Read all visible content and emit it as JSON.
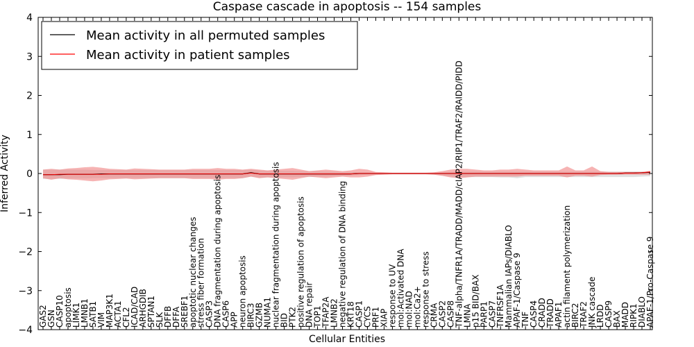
{
  "chart_data": {
    "type": "line",
    "title": "Caspase cascade in apoptosis -- 154 samples",
    "xlabel": "Cellular Entities",
    "ylabel": "Inferred Activity",
    "ylim": [
      -4,
      4
    ],
    "yticks": [
      -4,
      -3,
      -2,
      -1,
      0,
      1,
      2,
      3,
      4
    ],
    "ytick_labels": [
      "−4",
      "−3",
      "−2",
      "−1",
      "0",
      "1",
      "2",
      "3",
      "4"
    ],
    "legend_position": "top-left",
    "categories": [
      "GAS2",
      "GSN",
      "CASP10",
      "apoptosis",
      "LIMK1",
      "LMNB1",
      "SATB1",
      "VIM",
      "MAP3K1",
      "ACTA1",
      "CFL2",
      "ICAD/CAD",
      "ARHGDIB",
      "SPTAN1",
      "SLK",
      "DFFB",
      "DFFA",
      "SREBF1",
      "apoptotic nuclear changes",
      "stress fiber formation",
      "CASP3",
      "DNA fragmentation during apoptosis",
      "CASP6",
      "APP",
      "neuron apoptosis",
      "BIRC3",
      "GZMB",
      "NUMA1",
      "nuclear fragmentation during apoptosis",
      "BID",
      "PTK2",
      "positive regulation of apoptosis",
      "DNA repair",
      "TOP1",
      "TFAP2A",
      "LMNB2",
      "negative regulation of DNA binding",
      "KRT18",
      "CASP1",
      "CYCS",
      "PRF1",
      "XIAP",
      "response to UV",
      "mol:Activated DNA",
      "mol:NAD",
      "mol:Ca2+",
      "response to stress",
      "CRMA",
      "CASP2",
      "CASP8",
      "TNF-alpha/TNFR1A/TRADD/MADD/cIAP2/RIP1/TRAF2/RAIDD/PIDD",
      "LMNA",
      "p15 BID/BAX",
      "PARP1",
      "CASP7",
      "TNFRSF1A",
      "Mammalian IAPs/DIABLO",
      "APAF-1/Caspase 9",
      "TNF",
      "CASP4",
      "CRADD",
      "TRADD",
      "APAF1",
      "actin filament polymerization",
      "BIRC2",
      "TRAF2",
      "JNK cascade",
      "LRDD",
      "CASP9",
      "BAX",
      "MADD",
      "RIPK1",
      "DIABLO",
      "APAF-1/Pro-Caspase 9"
    ],
    "series": [
      {
        "name": "Mean activity in all permuted samples",
        "color": "#000000",
        "band_color": "#c8c8c8",
        "mean": [
          -0.03,
          -0.03,
          -0.03,
          -0.02,
          -0.02,
          -0.02,
          -0.02,
          -0.01,
          -0.01,
          -0.01,
          -0.01,
          -0.01,
          -0.01,
          -0.01,
          -0.01,
          -0.01,
          -0.01,
          -0.01,
          -0.01,
          -0.01,
          -0.01,
          -0.01,
          -0.01,
          -0.01,
          -0.01,
          0.02,
          -0.01,
          -0.01,
          -0.01,
          -0.01,
          -0.01,
          -0.01,
          -0.01,
          -0.01,
          -0.01,
          -0.01,
          -0.01,
          -0.01,
          0.0,
          0.0,
          0.0,
          0.0,
          0.0,
          0.0,
          0.0,
          0.0,
          0.0,
          0.0,
          0.0,
          0.0,
          0.0,
          0.0,
          0.0,
          0.0,
          0.0,
          0.0,
          0.0,
          0.0,
          0.0,
          0.0,
          0.0,
          0.0,
          0.0,
          0.0,
          0.0,
          0.0,
          0.0,
          0.0,
          0.0,
          0.0,
          0.01,
          0.01,
          0.02,
          0.03
        ],
        "upper": [
          0.1,
          0.1,
          0.1,
          0.1,
          0.1,
          0.1,
          0.09,
          0.09,
          0.09,
          0.09,
          0.09,
          0.09,
          0.09,
          0.09,
          0.09,
          0.09,
          0.09,
          0.09,
          0.09,
          0.09,
          0.09,
          0.09,
          0.09,
          0.09,
          0.09,
          0.1,
          0.08,
          0.07,
          0.07,
          0.07,
          0.07,
          0.06,
          0.06,
          0.06,
          0.05,
          0.05,
          0.04,
          0.04,
          0.03,
          0.03,
          0.02,
          0.02,
          0.02,
          0.02,
          0.02,
          0.02,
          0.02,
          0.02,
          0.03,
          0.04,
          0.05,
          0.05,
          0.05,
          0.05,
          0.05,
          0.05,
          0.05,
          0.05,
          0.05,
          0.05,
          0.05,
          0.05,
          0.05,
          0.05,
          0.05,
          0.05,
          0.05,
          0.05,
          0.05,
          0.05,
          0.05,
          0.05,
          0.05,
          0.05
        ],
        "lower": [
          -0.14,
          -0.14,
          -0.14,
          -0.13,
          -0.13,
          -0.13,
          -0.12,
          -0.12,
          -0.12,
          -0.12,
          -0.12,
          -0.12,
          -0.12,
          -0.12,
          -0.12,
          -0.12,
          -0.12,
          -0.12,
          -0.12,
          -0.12,
          -0.12,
          -0.12,
          -0.12,
          -0.12,
          -0.12,
          -0.08,
          -0.11,
          -0.1,
          -0.1,
          -0.1,
          -0.1,
          -0.09,
          -0.09,
          -0.08,
          -0.08,
          -0.07,
          -0.06,
          -0.05,
          -0.04,
          -0.03,
          -0.03,
          -0.02,
          -0.02,
          -0.02,
          -0.02,
          -0.02,
          -0.02,
          -0.03,
          -0.05,
          -0.08,
          -0.1,
          -0.09,
          -0.09,
          -0.09,
          -0.09,
          -0.1,
          -0.1,
          -0.12,
          -0.09,
          -0.09,
          -0.09,
          -0.09,
          -0.09,
          -0.09,
          -0.09,
          -0.09,
          -0.09,
          -0.09,
          -0.09,
          -0.09,
          -0.09,
          -0.09,
          -0.08,
          -0.07
        ]
      },
      {
        "name": "Mean activity in patient samples",
        "color": "#ff0000",
        "band_color": "#f08080",
        "mean": [
          -0.03,
          -0.03,
          -0.02,
          -0.02,
          -0.02,
          -0.02,
          -0.02,
          -0.02,
          -0.01,
          -0.01,
          -0.01,
          -0.01,
          -0.01,
          -0.01,
          -0.01,
          -0.01,
          -0.01,
          -0.01,
          -0.01,
          -0.01,
          -0.01,
          -0.01,
          -0.01,
          -0.01,
          -0.01,
          0.01,
          -0.01,
          -0.01,
          -0.01,
          -0.01,
          -0.01,
          -0.01,
          -0.01,
          -0.01,
          -0.01,
          -0.01,
          -0.01,
          -0.01,
          0.0,
          0.0,
          0.0,
          0.0,
          0.0,
          0.0,
          0.0,
          0.0,
          0.0,
          0.0,
          0.0,
          0.0,
          0.0,
          0.0,
          0.0,
          0.0,
          0.0,
          0.0,
          0.0,
          0.0,
          0.0,
          0.0,
          0.0,
          0.0,
          0.0,
          0.0,
          0.0,
          0.0,
          0.0,
          0.0,
          0.0,
          0.0,
          0.01,
          0.01,
          0.02,
          0.04
        ],
        "upper": [
          0.1,
          0.12,
          0.1,
          0.13,
          0.14,
          0.16,
          0.17,
          0.15,
          0.12,
          0.11,
          0.1,
          0.13,
          0.12,
          0.11,
          0.1,
          0.1,
          0.1,
          0.1,
          0.12,
          0.12,
          0.12,
          0.14,
          0.12,
          0.12,
          0.1,
          0.12,
          0.1,
          0.08,
          0.1,
          0.12,
          0.14,
          0.1,
          0.06,
          0.08,
          0.1,
          0.08,
          0.06,
          0.08,
          0.12,
          0.1,
          0.04,
          0.03,
          0.02,
          0.02,
          0.02,
          0.02,
          0.02,
          0.03,
          0.06,
          0.1,
          0.12,
          0.12,
          0.1,
          0.08,
          0.08,
          0.1,
          0.1,
          0.12,
          0.1,
          0.08,
          0.08,
          0.08,
          0.08,
          0.18,
          0.08,
          0.08,
          0.18,
          0.06,
          0.04,
          0.04,
          0.04,
          0.04,
          0.04,
          0.07
        ],
        "lower": [
          -0.12,
          -0.16,
          -0.12,
          -0.15,
          -0.16,
          -0.18,
          -0.2,
          -0.18,
          -0.15,
          -0.14,
          -0.13,
          -0.15,
          -0.14,
          -0.13,
          -0.12,
          -0.12,
          -0.12,
          -0.12,
          -0.14,
          -0.14,
          -0.14,
          -0.16,
          -0.14,
          -0.14,
          -0.12,
          -0.08,
          -0.12,
          -0.1,
          -0.12,
          -0.14,
          -0.16,
          -0.12,
          -0.08,
          -0.1,
          -0.12,
          -0.1,
          -0.08,
          -0.1,
          -0.1,
          -0.08,
          -0.04,
          -0.03,
          -0.02,
          -0.02,
          -0.02,
          -0.02,
          -0.02,
          -0.03,
          -0.06,
          -0.1,
          -0.12,
          -0.1,
          -0.08,
          -0.08,
          -0.08,
          -0.08,
          -0.08,
          -0.08,
          -0.06,
          -0.06,
          -0.06,
          -0.06,
          -0.06,
          -0.1,
          -0.06,
          -0.06,
          -0.08,
          -0.04,
          -0.03,
          -0.03,
          -0.03,
          -0.03,
          -0.03,
          -0.03
        ]
      }
    ]
  }
}
